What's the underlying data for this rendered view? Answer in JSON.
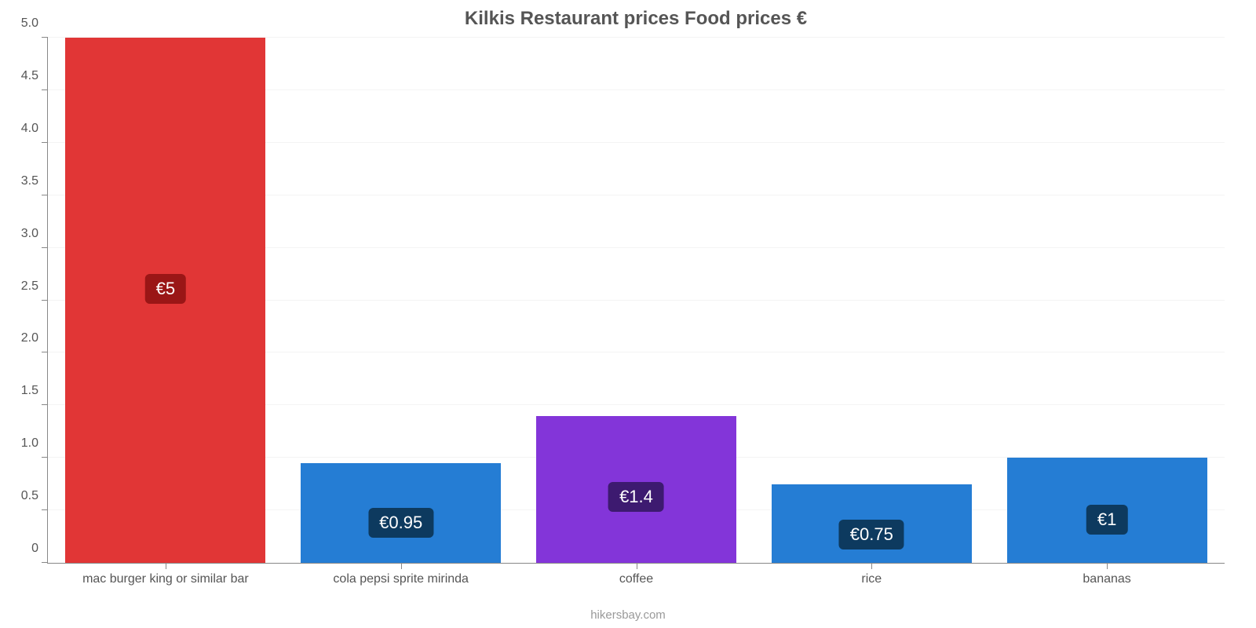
{
  "chart": {
    "type": "bar",
    "title": "Kilkis Restaurant prices Food prices €",
    "title_fontsize": 24,
    "title_color": "#555555",
    "attribution": "hikersbay.com",
    "attribution_color": "#999999",
    "background_color": "#ffffff",
    "grid_color": "#f4f4f4",
    "axis_color": "#888888",
    "ylim": [
      0,
      5.0
    ],
    "ytick_step": 0.5,
    "yticks": [
      "0",
      "0.5",
      "1.0",
      "1.5",
      "2.0",
      "2.5",
      "3.0",
      "3.5",
      "4.0",
      "4.5",
      "5.0"
    ],
    "label_fontsize": 16,
    "label_color": "#555555",
    "value_fontsize": 22,
    "bars": [
      {
        "category": "mac burger king or similar bar",
        "value": 5.0,
        "display_value": "€5",
        "bar_color": "#e13636",
        "value_bg_color": "#9a1616"
      },
      {
        "category": "cola pepsi sprite mirinda",
        "value": 0.95,
        "display_value": "€0.95",
        "bar_color": "#257dd4",
        "value_bg_color": "#0d3a5f"
      },
      {
        "category": "coffee",
        "value": 1.4,
        "display_value": "€1.4",
        "bar_color": "#8335d9",
        "value_bg_color": "#3d1a70"
      },
      {
        "category": "rice",
        "value": 0.75,
        "display_value": "€0.75",
        "bar_color": "#257dd4",
        "value_bg_color": "#0d3a5f"
      },
      {
        "category": "bananas",
        "value": 1.0,
        "display_value": "€1",
        "bar_color": "#257dd4",
        "value_bg_color": "#0d3a5f"
      }
    ],
    "bar_width_pct": 17
  }
}
